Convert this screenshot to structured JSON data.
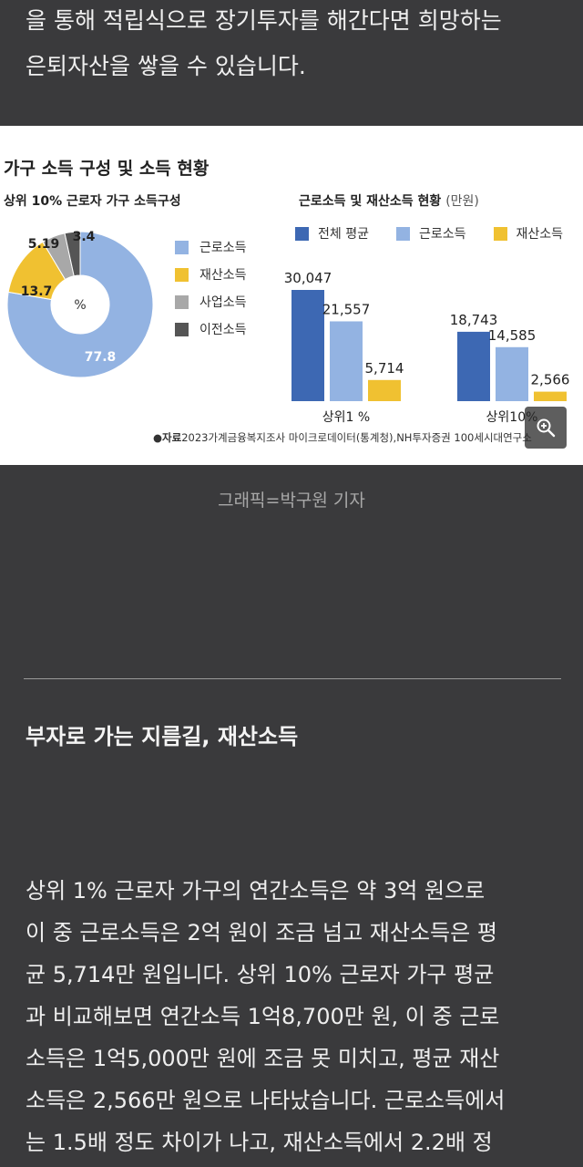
{
  "article": {
    "intro_lines": [
      "을 통해 적립식으로 장기투자를 해간다면 희망하는",
      "은퇴자산을 쌓을 수 있습니다."
    ],
    "caption": "그래픽=박구원 기자",
    "section_title": "부자로 가는 지름길, 재산소득",
    "body_lines": [
      "상위 1% 근로자 가구의 연간소득은 약 3억 원으로",
      "이 중 근로소득은 2억 원이 조금 넘고 재산소득은 평",
      "균 5,714만 원입니다. 상위 10% 근로자 가구 평균",
      "과 비교해보면 연간소득 1억8,700만 원, 이 중 근로",
      "소득은 1억5,000만 원에 조금 못 미치고, 평균 재산",
      "소득은 2,566만 원으로 나타났습니다. 근로소득에서",
      "는 1.5배 정도 차이가 나고, 재산소득에서 2.2배 정"
    ]
  },
  "figure": {
    "title": "가구 소득 구성 및 소득 현황",
    "source_label": "●자료",
    "source_text": "2023가계금융복지조사 마이크로데이터(통계청),NH투자증권 100세시대연구소",
    "zoom_icon": "magnifier-plus-icon"
  },
  "chart_data": [
    {
      "type": "pie",
      "title": "상위 10% 근로자 가구 소득구성",
      "center_label": "%",
      "labels": [
        "근로소득",
        "재산소득",
        "사업소득",
        "이전소득"
      ],
      "values": [
        77.8,
        13.7,
        5.19,
        3.4
      ],
      "value_labels": [
        "77.8",
        "13.7",
        "5.19",
        "3.4"
      ],
      "colors": [
        "#93b3e2",
        "#f0c131",
        "#a8a8a8",
        "#555555"
      ],
      "legend": "right"
    },
    {
      "type": "bar",
      "title": "근로소득 및 재산소득 현황",
      "unit": "(만원)",
      "categories": [
        "상위1 %",
        "상위10%"
      ],
      "series": [
        {
          "name": "전체 평균",
          "values": [
            30047,
            18743
          ],
          "labels": [
            "30,047",
            "18,743"
          ],
          "color": "#3d68b3"
        },
        {
          "name": "근로소득",
          "values": [
            21557,
            14585
          ],
          "labels": [
            "21,557",
            "14,585"
          ],
          "color": "#93b3e2"
        },
        {
          "name": "재산소득",
          "values": [
            5714,
            2566
          ],
          "labels": [
            "5,714",
            "2,566"
          ],
          "color": "#f0c131"
        }
      ],
      "legend": "top"
    }
  ]
}
